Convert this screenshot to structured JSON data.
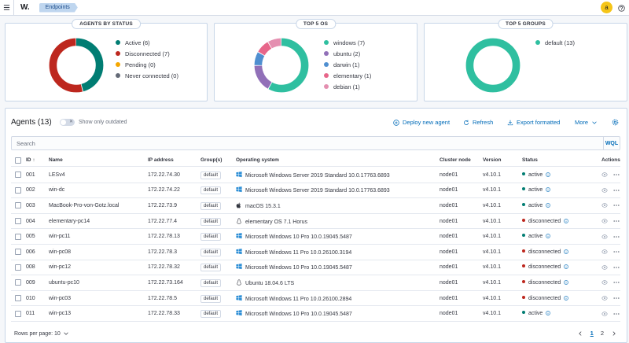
{
  "header": {
    "logo": "W.",
    "breadcrumb": "Endpoints",
    "avatar_initial": "a"
  },
  "panels": {
    "status": {
      "title": "AGENTS BY STATUS",
      "items": [
        {
          "label": "Active (6)",
          "color": "#017d73",
          "value": 6
        },
        {
          "label": "Disconnected (7)",
          "color": "#bd271e",
          "value": 7
        },
        {
          "label": "Pending (0)",
          "color": "#f5a700",
          "value": 0
        },
        {
          "label": "Never connected (0)",
          "color": "#646a77",
          "value": 0
        }
      ]
    },
    "os": {
      "title": "TOP 5 OS",
      "items": [
        {
          "label": "windows (7)",
          "color": "#2fbfa0",
          "value": 7
        },
        {
          "label": "ubuntu (2)",
          "color": "#9170b8",
          "value": 2
        },
        {
          "label": "darwin (1)",
          "color": "#4f8fd0",
          "value": 1
        },
        {
          "label": "elementary (1)",
          "color": "#e7668a",
          "value": 1
        },
        {
          "label": "debian (1)",
          "color": "#e48fb0",
          "value": 1
        }
      ]
    },
    "groups": {
      "title": "TOP 5 GROUPS",
      "items": [
        {
          "label": "default (13)",
          "color": "#2fbfa0",
          "value": 13
        }
      ]
    }
  },
  "agents": {
    "title": "Agents (13)",
    "toggle_label": "Show only outdated",
    "toggle_state": "✕",
    "actions": {
      "deploy": "Deploy new agent",
      "refresh": "Refresh",
      "export": "Export formatted",
      "more": "More"
    },
    "search_placeholder": "Search",
    "wql": "WQL",
    "columns": {
      "id": "ID",
      "name": "Name",
      "ip": "IP address",
      "groups": "Group(s)",
      "os": "Operating system",
      "node": "Cluster node",
      "version": "Version",
      "status": "Status",
      "actions": "Actions"
    },
    "rows": [
      {
        "id": "001",
        "name": "LESv4",
        "ip": "172.22.74.30",
        "group": "default",
        "os_icon": "windows",
        "os": "Microsoft Windows Server 2019 Standard 10.0.17763.6893",
        "node": "node01",
        "version": "v4.10.1",
        "status": "active"
      },
      {
        "id": "002",
        "name": "win-dc",
        "ip": "172.22.74.22",
        "group": "default",
        "os_icon": "windows",
        "os": "Microsoft Windows Server 2019 Standard 10.0.17763.6893",
        "node": "node01",
        "version": "v4.10.1",
        "status": "active"
      },
      {
        "id": "003",
        "name": "MacBook-Pro-von-Gotz.local",
        "ip": "172.22.73.9",
        "group": "default",
        "os_icon": "apple",
        "os": "macOS 15.3.1",
        "node": "node01",
        "version": "v4.10.1",
        "status": "active"
      },
      {
        "id": "004",
        "name": "elementary-pc14",
        "ip": "172.22.77.4",
        "group": "default",
        "os_icon": "linux",
        "os": "elementary OS 7.1 Horus",
        "node": "node01",
        "version": "v4.10.1",
        "status": "disconnected"
      },
      {
        "id": "005",
        "name": "win-pc11",
        "ip": "172.22.78.13",
        "group": "default",
        "os_icon": "windows",
        "os": "Microsoft Windows 10 Pro 10.0.19045.5487",
        "node": "node01",
        "version": "v4.10.1",
        "status": "active"
      },
      {
        "id": "006",
        "name": "win-pc08",
        "ip": "172.22.78.3",
        "group": "default",
        "os_icon": "windows",
        "os": "Microsoft Windows 11 Pro 10.0.26100.3194",
        "node": "node01",
        "version": "v4.10.1",
        "status": "disconnected"
      },
      {
        "id": "008",
        "name": "win-pc12",
        "ip": "172.22.78.32",
        "group": "default",
        "os_icon": "windows",
        "os": "Microsoft Windows 10 Pro 10.0.19045.5487",
        "node": "node01",
        "version": "v4.10.1",
        "status": "disconnected"
      },
      {
        "id": "009",
        "name": "ubuntu-pc10",
        "ip": "172.22.73.164",
        "group": "default",
        "os_icon": "linux",
        "os": "Ubuntu 18.04.6 LTS",
        "node": "node01",
        "version": "v4.10.1",
        "status": "disconnected"
      },
      {
        "id": "010",
        "name": "win-pc03",
        "ip": "172.22.78.5",
        "group": "default",
        "os_icon": "windows",
        "os": "Microsoft Windows 11 Pro 10.0.26100.2894",
        "node": "node01",
        "version": "v4.10.1",
        "status": "disconnected"
      },
      {
        "id": "011",
        "name": "win-pc13",
        "ip": "172.22.78.33",
        "group": "default",
        "os_icon": "windows",
        "os": "Microsoft Windows 10 Pro 10.0.19045.5487",
        "node": "node01",
        "version": "v4.10.1",
        "status": "active"
      }
    ],
    "status_colors": {
      "active": "#017d73",
      "disconnected": "#bd271e"
    },
    "rows_per_page": "Rows per page: 10",
    "pages": [
      "1",
      "2"
    ],
    "current_page": "1"
  }
}
